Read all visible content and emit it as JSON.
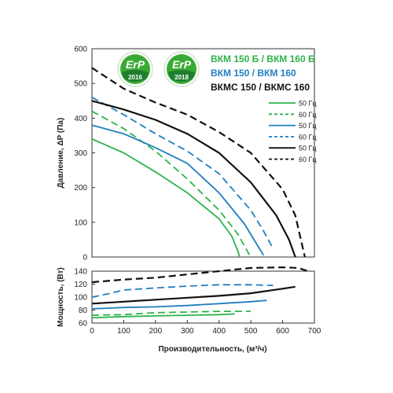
{
  "chart_data": [
    {
      "type": "line",
      "ylabel": "Давление, ΔP (Па)",
      "xlim": [
        0,
        700
      ],
      "ylim": [
        0,
        600
      ],
      "yticks": [
        0,
        100,
        200,
        300,
        400,
        500,
        600
      ],
      "grid": false,
      "series": [
        {
          "name": "50 Гц",
          "group": "ВКМ 150 Б / ВКМ 160 Б",
          "color": "#2db34a",
          "dash": false,
          "x": [
            0,
            100,
            200,
            300,
            400,
            440,
            460,
            465
          ],
          "y": [
            340,
            300,
            245,
            185,
            110,
            60,
            15,
            0
          ]
        },
        {
          "name": "60 Гц",
          "group": "ВКМ 150 Б / ВКМ 160 Б",
          "color": "#2db34a",
          "dash": true,
          "x": [
            0,
            100,
            200,
            300,
            400,
            460,
            490,
            500
          ],
          "y": [
            420,
            370,
            305,
            225,
            135,
            65,
            15,
            0
          ]
        },
        {
          "name": "50 Гц",
          "group": "ВКМ 150 / ВКМ 160",
          "color": "#1f7fbf",
          "dash": false,
          "x": [
            0,
            100,
            200,
            300,
            400,
            480,
            520,
            540
          ],
          "y": [
            380,
            355,
            315,
            270,
            185,
            95,
            35,
            5
          ]
        },
        {
          "name": "60 Гц",
          "group": "ВКМ 150 / ВКМ 160",
          "color": "#1f7fbf",
          "dash": true,
          "x": [
            0,
            100,
            200,
            300,
            400,
            500,
            540,
            570
          ],
          "y": [
            460,
            410,
            355,
            305,
            240,
            135,
            75,
            25
          ]
        },
        {
          "name": "50 Гц",
          "group": "ВКМС 150 / ВКМС 160",
          "color": "#111111",
          "dash": false,
          "x": [
            0,
            100,
            200,
            300,
            400,
            500,
            580,
            620,
            640
          ],
          "y": [
            450,
            425,
            395,
            355,
            300,
            215,
            120,
            50,
            0
          ]
        },
        {
          "name": "60 Гц",
          "group": "ВКМС 150 / ВКМС 160",
          "color": "#111111",
          "dash": true,
          "x": [
            0,
            100,
            200,
            300,
            400,
            500,
            600,
            640,
            670
          ],
          "y": [
            545,
            485,
            445,
            410,
            360,
            300,
            195,
            120,
            0
          ]
        }
      ]
    },
    {
      "type": "line",
      "xlabel": "Производительность, (м³/ч)",
      "ylabel": "Мощность, (Вт)",
      "xlim": [
        0,
        700
      ],
      "ylim": [
        60,
        140
      ],
      "xticks": [
        0,
        100,
        200,
        300,
        400,
        500,
        600,
        700
      ],
      "yticks": [
        60,
        80,
        100,
        120,
        140
      ],
      "grid": false,
      "series": [
        {
          "name": "50 Гц",
          "color": "#2db34a",
          "dash": false,
          "x": [
            0,
            100,
            200,
            300,
            400,
            450
          ],
          "y": [
            68,
            70,
            71,
            72,
            73,
            74
          ]
        },
        {
          "name": "60 Гц",
          "color": "#2db34a",
          "dash": true,
          "x": [
            0,
            100,
            200,
            300,
            400,
            500
          ],
          "y": [
            72,
            73,
            76,
            77,
            78,
            78
          ]
        },
        {
          "name": "50 Гц",
          "color": "#1f7fbf",
          "dash": false,
          "x": [
            0,
            100,
            200,
            300,
            400,
            500,
            550
          ],
          "y": [
            82,
            84,
            85,
            87,
            90,
            93,
            95
          ]
        },
        {
          "name": "60 Гц",
          "color": "#1f7fbf",
          "dash": true,
          "x": [
            0,
            50,
            100,
            200,
            300,
            400,
            500,
            570
          ],
          "y": [
            100,
            105,
            111,
            114,
            117,
            119,
            119,
            118
          ]
        },
        {
          "name": "50 Гц",
          "color": "#111111",
          "dash": false,
          "x": [
            0,
            100,
            200,
            300,
            400,
            500,
            600,
            640
          ],
          "y": [
            90,
            93,
            96,
            99,
            102,
            106,
            113,
            116
          ]
        },
        {
          "name": "60 Гц",
          "color": "#111111",
          "dash": true,
          "x": [
            0,
            100,
            200,
            300,
            400,
            500,
            600,
            650,
            680
          ],
          "y": [
            123,
            127,
            130,
            135,
            140,
            145,
            146,
            145,
            140
          ]
        }
      ]
    }
  ],
  "legend": {
    "groups": [
      {
        "label": "ВКМ 150 Б / ВКМ 160 Б",
        "color": "#2db34a"
      },
      {
        "label": "ВКМ 150 / ВКМ 160",
        "color": "#1f7fbf"
      },
      {
        "label": "ВКМС 150 / ВКМС 160",
        "color": "#111111"
      }
    ],
    "entries": [
      {
        "label": "50 Гц",
        "color": "#2db34a",
        "dash": false
      },
      {
        "label": "60 Гц",
        "color": "#2db34a",
        "dash": true
      },
      {
        "label": "50 Гц",
        "color": "#1f7fbf",
        "dash": false
      },
      {
        "label": "60 Гц",
        "color": "#1f7fbf",
        "dash": true
      },
      {
        "label": "50 Гц",
        "color": "#111111",
        "dash": false
      },
      {
        "label": "60 Гц",
        "color": "#111111",
        "dash": true
      }
    ]
  },
  "badges": [
    {
      "word": "ErP",
      "year": "2016",
      "icon": "erp-2016-badge-icon"
    },
    {
      "word": "ErP",
      "year": "2018",
      "icon": "erp-2018-badge-icon"
    }
  ]
}
